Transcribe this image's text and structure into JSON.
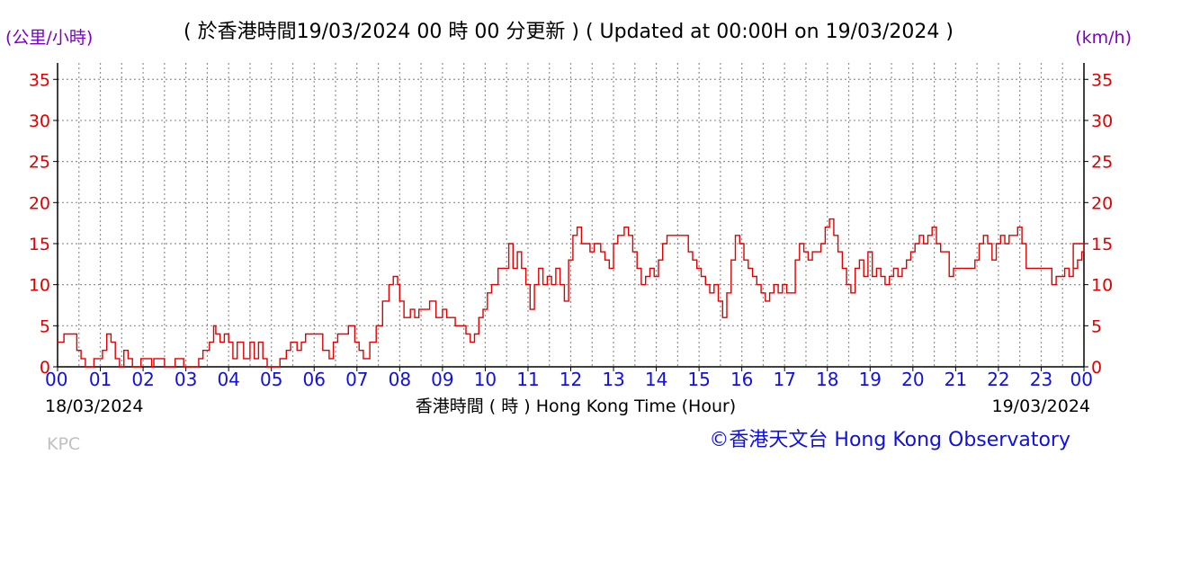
{
  "header": {
    "unit_left": "(公里/小時)",
    "title": "( 於香港時間19/03/2024 00 時 00 分更新 ) ( Updated at 00:00H on 19/03/2024 )",
    "unit_right": "(km/h)"
  },
  "footer": {
    "start_date": "18/03/2024",
    "end_date": "19/03/2024",
    "x_axis_label": "香港時間 ( 時 ) Hong Kong Time (Hour)",
    "station": "KPC",
    "credit": "©香港天文台 Hong Kong Observatory"
  },
  "colors": {
    "line": "#e00000",
    "grid": "#909090",
    "y_ticks": "#e00000",
    "x_ticks": "#1010e0",
    "units": "#7a00c8",
    "credit": "#1010e0",
    "station": "#c0c0c0"
  },
  "chart_data": {
    "type": "line",
    "xlabel": "香港時間 ( 時 ) Hong Kong Time (Hour)",
    "ylabel_left": "(公里/小時)",
    "ylabel_right": "(km/h)",
    "x_unit": "hour",
    "xlim": [
      0,
      24
    ],
    "ylim": [
      0,
      37
    ],
    "yticks": [
      0,
      5,
      10,
      15,
      20,
      25,
      30,
      35
    ],
    "xticks": [
      "00",
      "01",
      "02",
      "03",
      "04",
      "05",
      "06",
      "07",
      "08",
      "09",
      "10",
      "11",
      "12",
      "13",
      "14",
      "15",
      "16",
      "17",
      "18",
      "19",
      "20",
      "21",
      "22",
      "23",
      "00"
    ],
    "grid": true,
    "series": [
      {
        "color": "#e00000",
        "points": [
          [
            0.0,
            3
          ],
          [
            0.1,
            3
          ],
          [
            0.15,
            4
          ],
          [
            0.35,
            4
          ],
          [
            0.45,
            2
          ],
          [
            0.55,
            1
          ],
          [
            0.65,
            0
          ],
          [
            0.8,
            0
          ],
          [
            0.85,
            1
          ],
          [
            1.0,
            1
          ],
          [
            1.05,
            2
          ],
          [
            1.15,
            4
          ],
          [
            1.25,
            3
          ],
          [
            1.35,
            1
          ],
          [
            1.45,
            0
          ],
          [
            1.55,
            2
          ],
          [
            1.65,
            1
          ],
          [
            1.75,
            0
          ],
          [
            1.95,
            1
          ],
          [
            2.1,
            1
          ],
          [
            2.2,
            0
          ],
          [
            2.25,
            1
          ],
          [
            2.45,
            1
          ],
          [
            2.5,
            0
          ],
          [
            2.7,
            0
          ],
          [
            2.75,
            1
          ],
          [
            2.9,
            1
          ],
          [
            2.95,
            0
          ],
          [
            3.25,
            0
          ],
          [
            3.3,
            1
          ],
          [
            3.4,
            2
          ],
          [
            3.55,
            3
          ],
          [
            3.65,
            5
          ],
          [
            3.7,
            4
          ],
          [
            3.8,
            3
          ],
          [
            3.9,
            4
          ],
          [
            4.0,
            3
          ],
          [
            4.1,
            1
          ],
          [
            4.2,
            3
          ],
          [
            4.35,
            1
          ],
          [
            4.5,
            3
          ],
          [
            4.6,
            1
          ],
          [
            4.7,
            3
          ],
          [
            4.8,
            1
          ],
          [
            4.9,
            0
          ],
          [
            5.1,
            0
          ],
          [
            5.2,
            1
          ],
          [
            5.35,
            2
          ],
          [
            5.45,
            3
          ],
          [
            5.6,
            2
          ],
          [
            5.7,
            3
          ],
          [
            5.8,
            4
          ],
          [
            6.1,
            4
          ],
          [
            6.2,
            2
          ],
          [
            6.35,
            1
          ],
          [
            6.45,
            3
          ],
          [
            6.55,
            4
          ],
          [
            6.7,
            4
          ],
          [
            6.8,
            5
          ],
          [
            6.95,
            3
          ],
          [
            7.05,
            2
          ],
          [
            7.15,
            1
          ],
          [
            7.3,
            3
          ],
          [
            7.45,
            5
          ],
          [
            7.6,
            8
          ],
          [
            7.75,
            10
          ],
          [
            7.85,
            11
          ],
          [
            7.95,
            10
          ],
          [
            8.0,
            8
          ],
          [
            8.1,
            6
          ],
          [
            8.25,
            7
          ],
          [
            8.35,
            6
          ],
          [
            8.45,
            7
          ],
          [
            8.6,
            7
          ],
          [
            8.7,
            8
          ],
          [
            8.85,
            6
          ],
          [
            9.0,
            7
          ],
          [
            9.1,
            6
          ],
          [
            9.2,
            6
          ],
          [
            9.3,
            5
          ],
          [
            9.45,
            5
          ],
          [
            9.55,
            4
          ],
          [
            9.65,
            3
          ],
          [
            9.75,
            4
          ],
          [
            9.85,
            6
          ],
          [
            9.95,
            7
          ],
          [
            10.05,
            9
          ],
          [
            10.15,
            10
          ],
          [
            10.3,
            12
          ],
          [
            10.45,
            12
          ],
          [
            10.55,
            15
          ],
          [
            10.65,
            12
          ],
          [
            10.75,
            14
          ],
          [
            10.85,
            12
          ],
          [
            10.95,
            10
          ],
          [
            11.05,
            7
          ],
          [
            11.15,
            10
          ],
          [
            11.25,
            12
          ],
          [
            11.35,
            10
          ],
          [
            11.45,
            11
          ],
          [
            11.55,
            10
          ],
          [
            11.65,
            12
          ],
          [
            11.75,
            10
          ],
          [
            11.85,
            8
          ],
          [
            11.95,
            13
          ],
          [
            12.05,
            16
          ],
          [
            12.15,
            17
          ],
          [
            12.25,
            15
          ],
          [
            12.45,
            14
          ],
          [
            12.55,
            15
          ],
          [
            12.7,
            14
          ],
          [
            12.8,
            13
          ],
          [
            12.9,
            12
          ],
          [
            13.0,
            15
          ],
          [
            13.1,
            16
          ],
          [
            13.25,
            17
          ],
          [
            13.35,
            16
          ],
          [
            13.45,
            14
          ],
          [
            13.55,
            12
          ],
          [
            13.65,
            10
          ],
          [
            13.75,
            11
          ],
          [
            13.85,
            12
          ],
          [
            13.95,
            11
          ],
          [
            14.05,
            13
          ],
          [
            14.15,
            15
          ],
          [
            14.25,
            16
          ],
          [
            14.35,
            16
          ],
          [
            14.5,
            16
          ],
          [
            14.65,
            16
          ],
          [
            14.75,
            14
          ],
          [
            14.85,
            13
          ],
          [
            14.95,
            12
          ],
          [
            15.05,
            11
          ],
          [
            15.15,
            10
          ],
          [
            15.25,
            9
          ],
          [
            15.35,
            10
          ],
          [
            15.45,
            8
          ],
          [
            15.55,
            6
          ],
          [
            15.65,
            9
          ],
          [
            15.75,
            13
          ],
          [
            15.85,
            16
          ],
          [
            15.95,
            15
          ],
          [
            16.05,
            13
          ],
          [
            16.15,
            12
          ],
          [
            16.25,
            11
          ],
          [
            16.35,
            10
          ],
          [
            16.45,
            9
          ],
          [
            16.55,
            8
          ],
          [
            16.65,
            9
          ],
          [
            16.75,
            10
          ],
          [
            16.85,
            9
          ],
          [
            16.95,
            10
          ],
          [
            17.05,
            9
          ],
          [
            17.15,
            9
          ],
          [
            17.25,
            13
          ],
          [
            17.35,
            15
          ],
          [
            17.45,
            14
          ],
          [
            17.55,
            13
          ],
          [
            17.65,
            14
          ],
          [
            17.75,
            14
          ],
          [
            17.85,
            15
          ],
          [
            17.95,
            17
          ],
          [
            18.05,
            18
          ],
          [
            18.15,
            16
          ],
          [
            18.25,
            14
          ],
          [
            18.35,
            12
          ],
          [
            18.45,
            10
          ],
          [
            18.55,
            9
          ],
          [
            18.65,
            12
          ],
          [
            18.75,
            13
          ],
          [
            18.85,
            11
          ],
          [
            18.95,
            14
          ],
          [
            19.05,
            11
          ],
          [
            19.15,
            12
          ],
          [
            19.25,
            11
          ],
          [
            19.35,
            10
          ],
          [
            19.45,
            11
          ],
          [
            19.55,
            12
          ],
          [
            19.65,
            11
          ],
          [
            19.75,
            12
          ],
          [
            19.85,
            13
          ],
          [
            19.95,
            14
          ],
          [
            20.05,
            15
          ],
          [
            20.15,
            16
          ],
          [
            20.25,
            15
          ],
          [
            20.35,
            16
          ],
          [
            20.45,
            17
          ],
          [
            20.55,
            15
          ],
          [
            20.65,
            14
          ],
          [
            20.75,
            14
          ],
          [
            20.85,
            11
          ],
          [
            20.95,
            12
          ],
          [
            21.05,
            12
          ],
          [
            21.15,
            12
          ],
          [
            21.25,
            12
          ],
          [
            21.35,
            12
          ],
          [
            21.45,
            13
          ],
          [
            21.55,
            15
          ],
          [
            21.65,
            16
          ],
          [
            21.75,
            15
          ],
          [
            21.85,
            13
          ],
          [
            21.95,
            15
          ],
          [
            22.05,
            16
          ],
          [
            22.15,
            15
          ],
          [
            22.25,
            16
          ],
          [
            22.35,
            16
          ],
          [
            22.45,
            17
          ],
          [
            22.55,
            15
          ],
          [
            22.65,
            12
          ],
          [
            22.75,
            12
          ],
          [
            22.85,
            12
          ],
          [
            22.95,
            12
          ],
          [
            23.05,
            12
          ],
          [
            23.15,
            12
          ],
          [
            23.25,
            10
          ],
          [
            23.35,
            11
          ],
          [
            23.45,
            11
          ],
          [
            23.55,
            12
          ],
          [
            23.65,
            11
          ],
          [
            23.75,
            12
          ],
          [
            23.85,
            13
          ],
          [
            23.95,
            14
          ],
          [
            24.0,
            15
          ],
          [
            23.75,
            12
          ]
        ]
      }
    ]
  }
}
